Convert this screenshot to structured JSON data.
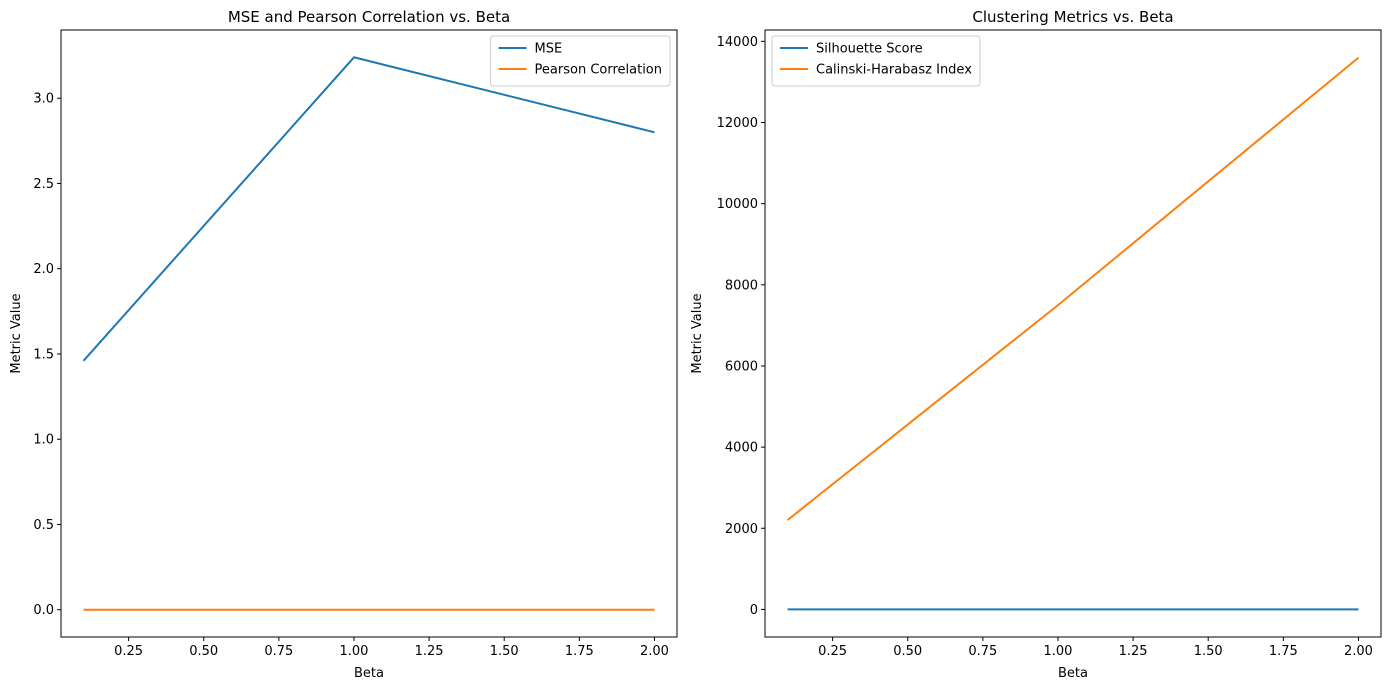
{
  "chart_data": [
    {
      "type": "line",
      "title": "MSE and Pearson Correlation vs. Beta",
      "xlabel": "Beta",
      "ylabel": "Metric Value",
      "xlim": [
        0.025,
        2.075
      ],
      "ylim": [
        -0.16,
        3.4
      ],
      "xticks": [
        0.25,
        0.5,
        0.75,
        1.0,
        1.25,
        1.5,
        1.75,
        2.0
      ],
      "xtick_labels": [
        "0.25",
        "0.50",
        "0.75",
        "1.00",
        "1.25",
        "1.50",
        "1.75",
        "2.00"
      ],
      "yticks": [
        0.0,
        0.5,
        1.0,
        1.5,
        2.0,
        2.5,
        3.0
      ],
      "ytick_labels": [
        "0.0",
        "0.5",
        "1.0",
        "1.5",
        "2.0",
        "2.5",
        "3.0"
      ],
      "grid": false,
      "legend_position": "top-right",
      "series": [
        {
          "name": "MSE",
          "color": "#1f77b4",
          "x": [
            0.1,
            1.0,
            2.0
          ],
          "y": [
            1.46,
            3.24,
            2.8
          ]
        },
        {
          "name": "Pearson Correlation",
          "color": "#ff7f0e",
          "x": [
            0.1,
            1.0,
            2.0
          ],
          "y": [
            0.0,
            0.0,
            0.0
          ]
        }
      ]
    },
    {
      "type": "line",
      "title": "Clustering Metrics vs. Beta",
      "xlabel": "Beta",
      "ylabel": "Metric Value",
      "xlim": [
        0.025,
        2.075
      ],
      "ylim": [
        -680,
        14280
      ],
      "xticks": [
        0.25,
        0.5,
        0.75,
        1.0,
        1.25,
        1.5,
        1.75,
        2.0
      ],
      "xtick_labels": [
        "0.25",
        "0.50",
        "0.75",
        "1.00",
        "1.25",
        "1.50",
        "1.75",
        "2.00"
      ],
      "yticks": [
        0,
        2000,
        4000,
        6000,
        8000,
        10000,
        12000,
        14000
      ],
      "ytick_labels": [
        "0",
        "2000",
        "4000",
        "6000",
        "8000",
        "10000",
        "12000",
        "14000"
      ],
      "grid": false,
      "legend_position": "top-left",
      "series": [
        {
          "name": "Silhouette Score",
          "color": "#1f77b4",
          "x": [
            0.1,
            1.0,
            2.0
          ],
          "y": [
            0.0,
            0.0,
            0.0
          ]
        },
        {
          "name": "Calinski-Harabasz Index",
          "color": "#ff7f0e",
          "x": [
            0.1,
            1.0,
            2.0
          ],
          "y": [
            2200,
            7500,
            13600
          ]
        }
      ]
    }
  ]
}
